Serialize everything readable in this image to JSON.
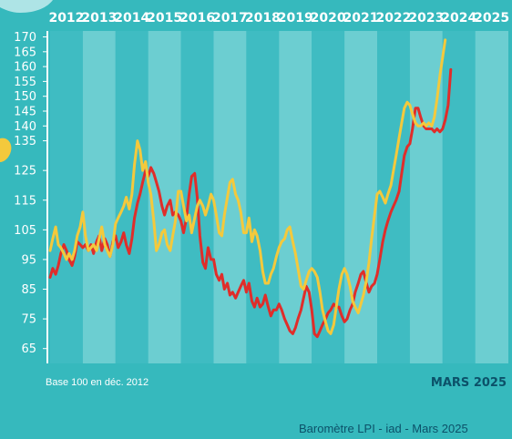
{
  "chart_data": {
    "type": "line",
    "colors": {
      "background": "#36b9bd",
      "band_dark": "#3fbcc2",
      "band_light": "#6cced1",
      "red": "#e02d2a",
      "yellow": "#f4c93c",
      "text": "#ffffff",
      "footer_text": "#0c5169"
    },
    "years": [
      "2012",
      "2013",
      "2014",
      "2015",
      "2016",
      "2017",
      "2018",
      "2019",
      "2020",
      "2021",
      "2022",
      "2023",
      "2024",
      "2025"
    ],
    "ylim": [
      60,
      172
    ],
    "yticks": [
      65,
      75,
      85,
      95,
      105,
      115,
      125,
      135,
      140,
      145,
      150,
      155,
      160,
      165,
      170
    ],
    "base_note": "Base 100 en déc. 2012",
    "month_label": "MARS 2025",
    "source": "Baromètre LPI - iad - Mars 2025",
    "series": [
      {
        "color": "red",
        "points": [
          [
            2012.0,
            89
          ],
          [
            2012.08,
            92
          ],
          [
            2012.17,
            90
          ],
          [
            2012.25,
            93
          ],
          [
            2012.33,
            97
          ],
          [
            2012.42,
            100
          ],
          [
            2012.5,
            98
          ],
          [
            2012.58,
            95
          ],
          [
            2012.67,
            93
          ],
          [
            2012.75,
            96
          ],
          [
            2012.83,
            101
          ],
          [
            2012.92,
            100
          ],
          [
            2013.0,
            99
          ],
          [
            2013.08,
            100
          ],
          [
            2013.17,
            98
          ],
          [
            2013.25,
            100
          ],
          [
            2013.33,
            97
          ],
          [
            2013.42,
            101
          ],
          [
            2013.5,
            103
          ],
          [
            2013.58,
            98
          ],
          [
            2013.67,
            102
          ],
          [
            2013.75,
            100
          ],
          [
            2013.83,
            96
          ],
          [
            2013.92,
            101
          ],
          [
            2014.0,
            103
          ],
          [
            2014.08,
            99
          ],
          [
            2014.17,
            101
          ],
          [
            2014.25,
            104
          ],
          [
            2014.33,
            100
          ],
          [
            2014.42,
            97
          ],
          [
            2014.5,
            102
          ],
          [
            2014.58,
            109
          ],
          [
            2014.67,
            114
          ],
          [
            2014.75,
            117
          ],
          [
            2014.83,
            121
          ],
          [
            2014.92,
            125
          ],
          [
            2015.0,
            123
          ],
          [
            2015.08,
            126
          ],
          [
            2015.17,
            124
          ],
          [
            2015.25,
            121
          ],
          [
            2015.33,
            118
          ],
          [
            2015.42,
            113
          ],
          [
            2015.5,
            110
          ],
          [
            2015.58,
            113
          ],
          [
            2015.67,
            115
          ],
          [
            2015.75,
            110
          ],
          [
            2015.83,
            111
          ],
          [
            2015.92,
            110
          ],
          [
            2016.0,
            108
          ],
          [
            2016.08,
            104
          ],
          [
            2016.17,
            109
          ],
          [
            2016.25,
            117
          ],
          [
            2016.33,
            123
          ],
          [
            2016.42,
            124
          ],
          [
            2016.5,
            116
          ],
          [
            2016.58,
            103
          ],
          [
            2016.67,
            94
          ],
          [
            2016.75,
            92
          ],
          [
            2016.83,
            99
          ],
          [
            2016.92,
            95
          ],
          [
            2017.0,
            95
          ],
          [
            2017.08,
            90
          ],
          [
            2017.17,
            88
          ],
          [
            2017.25,
            90
          ],
          [
            2017.33,
            85
          ],
          [
            2017.42,
            87
          ],
          [
            2017.5,
            83
          ],
          [
            2017.58,
            84
          ],
          [
            2017.67,
            82
          ],
          [
            2017.75,
            84
          ],
          [
            2017.83,
            86
          ],
          [
            2017.92,
            88
          ],
          [
            2018.0,
            84
          ],
          [
            2018.08,
            87
          ],
          [
            2018.17,
            81
          ],
          [
            2018.25,
            79
          ],
          [
            2018.33,
            82
          ],
          [
            2018.42,
            79
          ],
          [
            2018.5,
            80
          ],
          [
            2018.58,
            83
          ],
          [
            2018.67,
            79
          ],
          [
            2018.75,
            76
          ],
          [
            2018.83,
            78
          ],
          [
            2018.92,
            78
          ],
          [
            2019.0,
            80
          ],
          [
            2019.08,
            78
          ],
          [
            2019.17,
            75
          ],
          [
            2019.25,
            73
          ],
          [
            2019.33,
            71
          ],
          [
            2019.42,
            70
          ],
          [
            2019.5,
            72
          ],
          [
            2019.58,
            75
          ],
          [
            2019.67,
            78
          ],
          [
            2019.75,
            82
          ],
          [
            2019.83,
            86
          ],
          [
            2019.92,
            84
          ],
          [
            2020.0,
            78
          ],
          [
            2020.08,
            70
          ],
          [
            2020.17,
            69
          ],
          [
            2020.25,
            71
          ],
          [
            2020.33,
            73
          ],
          [
            2020.42,
            75
          ],
          [
            2020.5,
            77
          ],
          [
            2020.58,
            78
          ],
          [
            2020.67,
            80
          ],
          [
            2020.75,
            79
          ],
          [
            2020.83,
            79
          ],
          [
            2020.92,
            76
          ],
          [
            2021.0,
            74
          ],
          [
            2021.08,
            75
          ],
          [
            2021.17,
            78
          ],
          [
            2021.25,
            80
          ],
          [
            2021.33,
            84
          ],
          [
            2021.42,
            87
          ],
          [
            2021.5,
            90
          ],
          [
            2021.58,
            91
          ],
          [
            2021.67,
            87
          ],
          [
            2021.75,
            84
          ],
          [
            2021.83,
            86
          ],
          [
            2021.92,
            87
          ],
          [
            2022.0,
            90
          ],
          [
            2022.08,
            95
          ],
          [
            2022.17,
            101
          ],
          [
            2022.25,
            105
          ],
          [
            2022.33,
            108
          ],
          [
            2022.42,
            111
          ],
          [
            2022.5,
            113
          ],
          [
            2022.58,
            115
          ],
          [
            2022.67,
            118
          ],
          [
            2022.75,
            124
          ],
          [
            2022.83,
            130
          ],
          [
            2022.92,
            133
          ],
          [
            2023.0,
            134
          ],
          [
            2023.08,
            139
          ],
          [
            2023.17,
            146
          ],
          [
            2023.25,
            146
          ],
          [
            2023.33,
            143
          ],
          [
            2023.42,
            140
          ],
          [
            2023.5,
            139
          ],
          [
            2023.58,
            139
          ],
          [
            2023.67,
            139
          ],
          [
            2023.75,
            138
          ],
          [
            2023.83,
            139
          ],
          [
            2023.92,
            138
          ],
          [
            2024.0,
            139
          ],
          [
            2024.08,
            142
          ],
          [
            2024.17,
            147
          ],
          [
            2024.25,
            159
          ]
        ]
      },
      {
        "color": "yellow",
        "points": [
          [
            2012.0,
            98
          ],
          [
            2012.08,
            102
          ],
          [
            2012.17,
            106
          ],
          [
            2012.25,
            100
          ],
          [
            2012.33,
            99
          ],
          [
            2012.42,
            97
          ],
          [
            2012.5,
            95
          ],
          [
            2012.58,
            97
          ],
          [
            2012.67,
            95
          ],
          [
            2012.75,
            98
          ],
          [
            2012.83,
            103
          ],
          [
            2012.92,
            106
          ],
          [
            2013.0,
            111
          ],
          [
            2013.08,
            103
          ],
          [
            2013.17,
            98
          ],
          [
            2013.25,
            99
          ],
          [
            2013.33,
            100
          ],
          [
            2013.42,
            98
          ],
          [
            2013.5,
            102
          ],
          [
            2013.58,
            106
          ],
          [
            2013.67,
            100
          ],
          [
            2013.75,
            98
          ],
          [
            2013.83,
            96
          ],
          [
            2013.92,
            100
          ],
          [
            2014.0,
            107
          ],
          [
            2014.08,
            109
          ],
          [
            2014.17,
            111
          ],
          [
            2014.25,
            113
          ],
          [
            2014.33,
            116
          ],
          [
            2014.42,
            112
          ],
          [
            2014.5,
            117
          ],
          [
            2014.58,
            127
          ],
          [
            2014.67,
            135
          ],
          [
            2014.75,
            132
          ],
          [
            2014.83,
            125
          ],
          [
            2014.92,
            128
          ],
          [
            2015.0,
            121
          ],
          [
            2015.08,
            117
          ],
          [
            2015.17,
            108
          ],
          [
            2015.25,
            98
          ],
          [
            2015.33,
            100
          ],
          [
            2015.42,
            104
          ],
          [
            2015.5,
            105
          ],
          [
            2015.58,
            100
          ],
          [
            2015.67,
            98
          ],
          [
            2015.75,
            103
          ],
          [
            2015.83,
            108
          ],
          [
            2015.92,
            118
          ],
          [
            2016.0,
            118
          ],
          [
            2016.08,
            113
          ],
          [
            2016.17,
            108
          ],
          [
            2016.25,
            110
          ],
          [
            2016.33,
            104
          ],
          [
            2016.42,
            109
          ],
          [
            2016.5,
            113
          ],
          [
            2016.58,
            115
          ],
          [
            2016.67,
            113
          ],
          [
            2016.75,
            110
          ],
          [
            2016.83,
            113
          ],
          [
            2016.92,
            117
          ],
          [
            2017.0,
            115
          ],
          [
            2017.08,
            110
          ],
          [
            2017.17,
            104
          ],
          [
            2017.25,
            103
          ],
          [
            2017.33,
            110
          ],
          [
            2017.42,
            116
          ],
          [
            2017.5,
            121
          ],
          [
            2017.58,
            122
          ],
          [
            2017.67,
            117
          ],
          [
            2017.75,
            115
          ],
          [
            2017.83,
            111
          ],
          [
            2017.92,
            104
          ],
          [
            2018.0,
            104
          ],
          [
            2018.08,
            109
          ],
          [
            2018.17,
            101
          ],
          [
            2018.25,
            105
          ],
          [
            2018.33,
            103
          ],
          [
            2018.42,
            98
          ],
          [
            2018.5,
            91
          ],
          [
            2018.58,
            87
          ],
          [
            2018.67,
            87
          ],
          [
            2018.75,
            90
          ],
          [
            2018.83,
            92
          ],
          [
            2018.92,
            96
          ],
          [
            2019.0,
            99
          ],
          [
            2019.08,
            101
          ],
          [
            2019.17,
            102
          ],
          [
            2019.25,
            105
          ],
          [
            2019.33,
            106
          ],
          [
            2019.42,
            101
          ],
          [
            2019.5,
            97
          ],
          [
            2019.58,
            92
          ],
          [
            2019.67,
            86
          ],
          [
            2019.75,
            85
          ],
          [
            2019.83,
            88
          ],
          [
            2019.92,
            91
          ],
          [
            2020.0,
            92
          ],
          [
            2020.08,
            91
          ],
          [
            2020.17,
            89
          ],
          [
            2020.25,
            84
          ],
          [
            2020.33,
            78
          ],
          [
            2020.42,
            74
          ],
          [
            2020.5,
            71
          ],
          [
            2020.58,
            70
          ],
          [
            2020.67,
            73
          ],
          [
            2020.75,
            79
          ],
          [
            2020.83,
            85
          ],
          [
            2020.92,
            90
          ],
          [
            2021.0,
            92
          ],
          [
            2021.08,
            90
          ],
          [
            2021.17,
            86
          ],
          [
            2021.25,
            81
          ],
          [
            2021.33,
            79
          ],
          [
            2021.42,
            77
          ],
          [
            2021.5,
            80
          ],
          [
            2021.58,
            83
          ],
          [
            2021.67,
            88
          ],
          [
            2021.75,
            94
          ],
          [
            2021.83,
            102
          ],
          [
            2021.92,
            110
          ],
          [
            2022.0,
            117
          ],
          [
            2022.08,
            118
          ],
          [
            2022.17,
            116
          ],
          [
            2022.25,
            114
          ],
          [
            2022.33,
            117
          ],
          [
            2022.42,
            120
          ],
          [
            2022.5,
            125
          ],
          [
            2022.58,
            130
          ],
          [
            2022.67,
            136
          ],
          [
            2022.75,
            141
          ],
          [
            2022.83,
            146
          ],
          [
            2022.92,
            148
          ],
          [
            2023.0,
            147
          ],
          [
            2023.08,
            144
          ],
          [
            2023.17,
            141
          ],
          [
            2023.25,
            140
          ],
          [
            2023.33,
            140
          ],
          [
            2023.42,
            141
          ],
          [
            2023.5,
            140
          ],
          [
            2023.58,
            141
          ],
          [
            2023.67,
            140
          ],
          [
            2023.75,
            143
          ],
          [
            2023.83,
            149
          ],
          [
            2023.92,
            157
          ],
          [
            2024.0,
            163
          ],
          [
            2024.08,
            169
          ]
        ]
      }
    ]
  }
}
